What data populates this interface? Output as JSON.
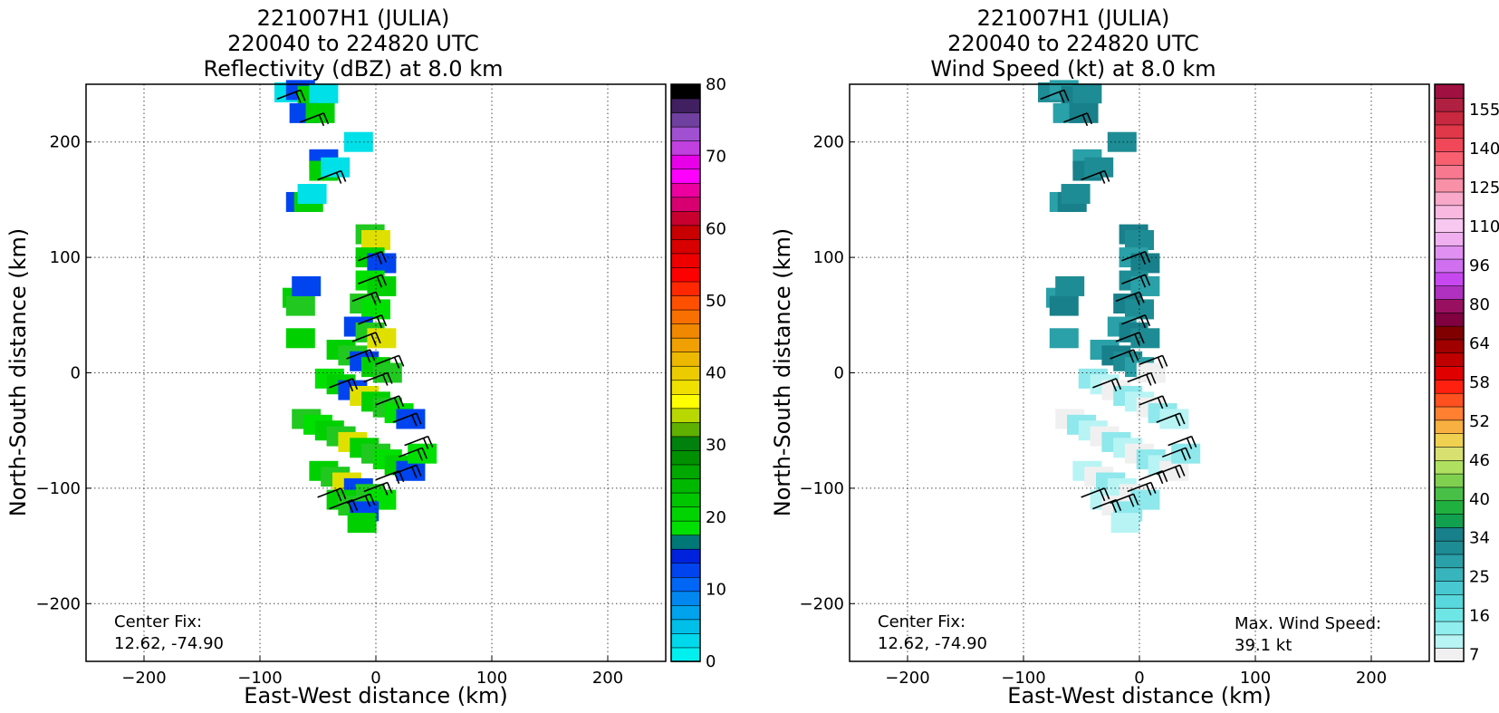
{
  "chart_data": [
    {
      "type": "heatmap",
      "title_lines": [
        "221007H1 (JULIA)",
        "220040 to 224820 UTC",
        "Reflectivity (dBZ) at 8.0 km"
      ],
      "xlabel": "East-West distance (km)",
      "ylabel": "North-South distance (km)",
      "xlim": [
        -250,
        250
      ],
      "ylim": [
        -250,
        250
      ],
      "xticks": [
        -200,
        -100,
        0,
        100,
        200
      ],
      "yticks": [
        -200,
        -100,
        0,
        100,
        200
      ],
      "grid": true,
      "annotations": [
        {
          "text": "Center Fix:\n12.62, -74.90",
          "position": "bottom-left"
        }
      ],
      "colorbar": {
        "ticks": [
          0,
          10,
          20,
          30,
          40,
          50,
          60,
          70,
          80
        ],
        "range": [
          0,
          80
        ],
        "colors": [
          "#00f0f0",
          "#00d8ec",
          "#00bfe8",
          "#00a3ec",
          "#0088f0",
          "#0066f5",
          "#0044f0",
          "#0022dd",
          "#007878",
          "#00e000",
          "#00d400",
          "#00c600",
          "#00b800",
          "#00a800",
          "#009000",
          "#00800c",
          "#5fb000",
          "#b8d800",
          "#ffff00",
          "#f0e000",
          "#eccc00",
          "#ecb800",
          "#f0a000",
          "#f08800",
          "#f87000",
          "#ff5000",
          "#ff2800",
          "#ff0000",
          "#ee0000",
          "#d80000",
          "#c80000",
          "#c80030",
          "#d80070",
          "#ec00a0",
          "#ff00ff",
          "#e800e8",
          "#c040e0",
          "#a050d0",
          "#7040a0",
          "#402060",
          "#000000"
        ]
      },
      "cells": [
        {
          "x": -75,
          "y": 243
        },
        {
          "x": -65,
          "y": 245
        },
        {
          "x": -55,
          "y": 240
        },
        {
          "x": -45,
          "y": 242
        },
        {
          "x": -62,
          "y": 225
        },
        {
          "x": -48,
          "y": 225
        },
        {
          "x": -15,
          "y": 200
        },
        {
          "x": -45,
          "y": 185
        },
        {
          "x": -45,
          "y": 175
        },
        {
          "x": -35,
          "y": 178
        },
        {
          "x": -65,
          "y": 148
        },
        {
          "x": -58,
          "y": 148
        },
        {
          "x": -55,
          "y": 155
        },
        {
          "x": -68,
          "y": 65
        },
        {
          "x": -65,
          "y": 58
        },
        {
          "x": -60,
          "y": 75
        },
        {
          "x": -65,
          "y": 30
        },
        {
          "x": -5,
          "y": 120
        },
        {
          "x": 0,
          "y": 115
        },
        {
          "x": -5,
          "y": 100
        },
        {
          "x": 5,
          "y": 95
        },
        {
          "x": -5,
          "y": 80
        },
        {
          "x": 5,
          "y": 75
        },
        {
          "x": -10,
          "y": 60
        },
        {
          "x": 0,
          "y": 55
        },
        {
          "x": -15,
          "y": 40
        },
        {
          "x": -5,
          "y": 35
        },
        {
          "x": 5,
          "y": 30
        },
        {
          "x": -30,
          "y": 20
        },
        {
          "x": -20,
          "y": 15
        },
        {
          "x": -10,
          "y": 10
        },
        {
          "x": 0,
          "y": 5
        },
        {
          "x": 10,
          "y": 0
        },
        {
          "x": -40,
          "y": -5
        },
        {
          "x": -30,
          "y": -10
        },
        {
          "x": -20,
          "y": -15
        },
        {
          "x": -10,
          "y": -20
        },
        {
          "x": 0,
          "y": -25
        },
        {
          "x": 10,
          "y": -30
        },
        {
          "x": 20,
          "y": -35
        },
        {
          "x": 30,
          "y": -40
        },
        {
          "x": -60,
          "y": -40
        },
        {
          "x": -50,
          "y": -45
        },
        {
          "x": -40,
          "y": -50
        },
        {
          "x": -30,
          "y": -55
        },
        {
          "x": -20,
          "y": -60
        },
        {
          "x": -10,
          "y": -65
        },
        {
          "x": 0,
          "y": -70
        },
        {
          "x": 10,
          "y": -75
        },
        {
          "x": 20,
          "y": -80
        },
        {
          "x": 30,
          "y": -85
        },
        {
          "x": 40,
          "y": -70
        },
        {
          "x": -45,
          "y": -85
        },
        {
          "x": -35,
          "y": -90
        },
        {
          "x": -25,
          "y": -95
        },
        {
          "x": -15,
          "y": -100
        },
        {
          "x": -5,
          "y": -105
        },
        {
          "x": 5,
          "y": -110
        },
        {
          "x": -30,
          "y": -110
        },
        {
          "x": -20,
          "y": -115
        },
        {
          "x": -10,
          "y": -120
        },
        {
          "x": -12,
          "y": -130
        }
      ]
    },
    {
      "type": "heatmap",
      "title_lines": [
        "221007H1 (JULIA)",
        "220040 to 224820 UTC",
        "Wind Speed (kt) at 8.0 km"
      ],
      "xlabel": "East-West distance (km)",
      "ylabel": "North-South distance (km)",
      "xlim": [
        -250,
        250
      ],
      "ylim": [
        -250,
        250
      ],
      "xticks": [
        -200,
        -100,
        0,
        100,
        200
      ],
      "yticks": [
        -200,
        -100,
        0,
        100,
        200
      ],
      "grid": true,
      "annotations": [
        {
          "text": "Center Fix:\n12.62, -74.90",
          "position": "bottom-left"
        },
        {
          "text": "Max. Wind Speed:\n39.1 kt",
          "position": "bottom-right"
        }
      ],
      "colorbar": {
        "ticks": [
          7,
          16,
          25,
          34,
          40,
          46,
          52,
          58,
          64,
          80,
          96,
          110,
          125,
          140,
          155
        ],
        "colors": [
          "#f0f0f0",
          "#b8f4f4",
          "#90eeee",
          "#6ee6e6",
          "#58d8dc",
          "#48c8d0",
          "#38b4bc",
          "#2aa0a8",
          "#1e8c94",
          "#18808a",
          "#10a050",
          "#20b040",
          "#48c048",
          "#80d050",
          "#b0e060",
          "#d8e070",
          "#f0d050",
          "#f8b040",
          "#ff8030",
          "#ff5020",
          "#ff2010",
          "#e00000",
          "#c00000",
          "#a00000",
          "#800000",
          "#800040",
          "#9a1060",
          "#b030c0",
          "#c848f0",
          "#d070f0",
          "#e090f0",
          "#f0b0f0",
          "#f8c8f0",
          "#f8b8e0",
          "#f8a8c8",
          "#f890a8",
          "#f87890",
          "#f86070",
          "#f04858",
          "#e03848",
          "#c82840",
          "#b02040",
          "#a01040"
        ]
      },
      "max_wind_speed_kt": 39.1
    }
  ]
}
